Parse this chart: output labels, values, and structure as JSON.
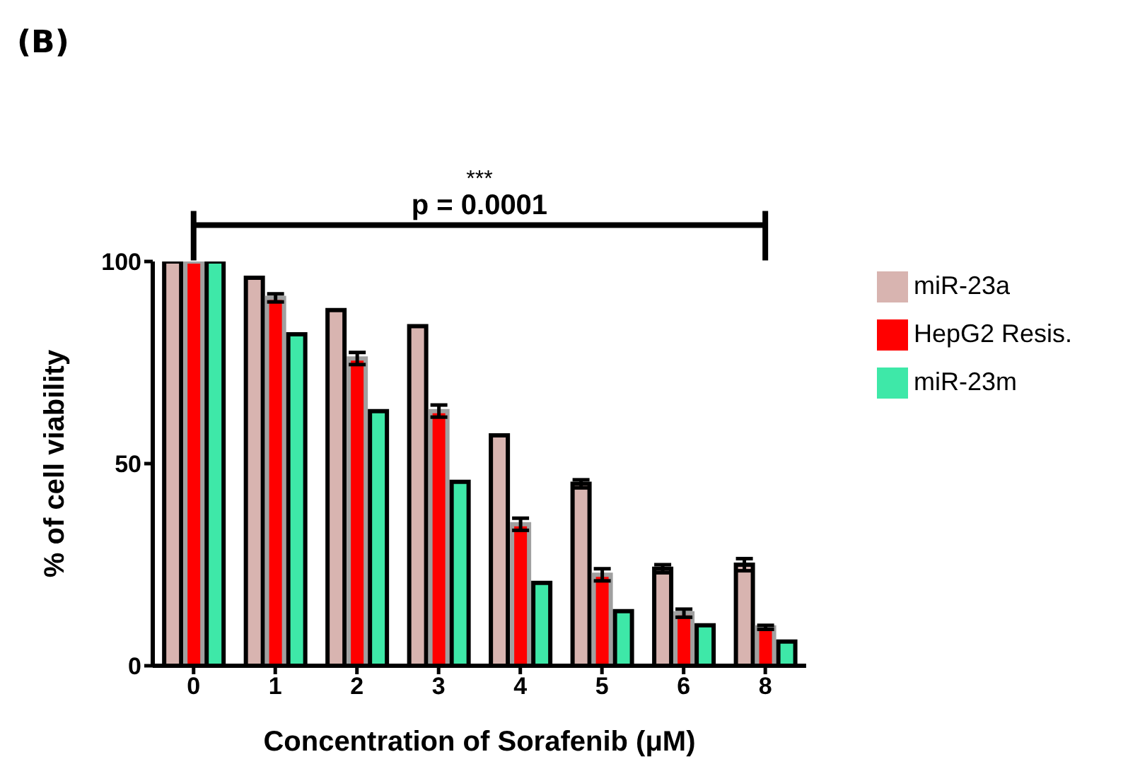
{
  "chart_data": {
    "type": "bar",
    "xlabel": "Concentration of Sorafenib (μM)",
    "ylabel": "% of cell viability",
    "categories": [
      "0",
      "1",
      "2",
      "3",
      "4",
      "5",
      "6",
      "8"
    ],
    "series": [
      {
        "name": "miR-23a",
        "color": "#d8b4b0",
        "values": [
          100,
          96,
          88,
          84,
          57,
          45,
          24,
          25
        ],
        "errors": [
          null,
          null,
          null,
          null,
          null,
          1,
          1,
          1.5
        ]
      },
      {
        "name": "HepG2 Resis.",
        "color": "#ff0000",
        "values": [
          100,
          91,
          76,
          63,
          35,
          22.5,
          13,
          9.5
        ],
        "errors": [
          null,
          1,
          1.5,
          1.5,
          1.5,
          1.5,
          1,
          0.5
        ]
      },
      {
        "name": "miR-23m",
        "color": "#3ee8a8",
        "values": [
          100,
          82,
          63,
          45.5,
          20.5,
          13.5,
          10,
          6
        ]
      }
    ],
    "ylim": [
      0,
      100
    ],
    "yticks": [
      0,
      50,
      100
    ],
    "grid": false,
    "legend": "top right",
    "annotations": [
      "(B)",
      "***",
      "p = 0.0001"
    ]
  }
}
